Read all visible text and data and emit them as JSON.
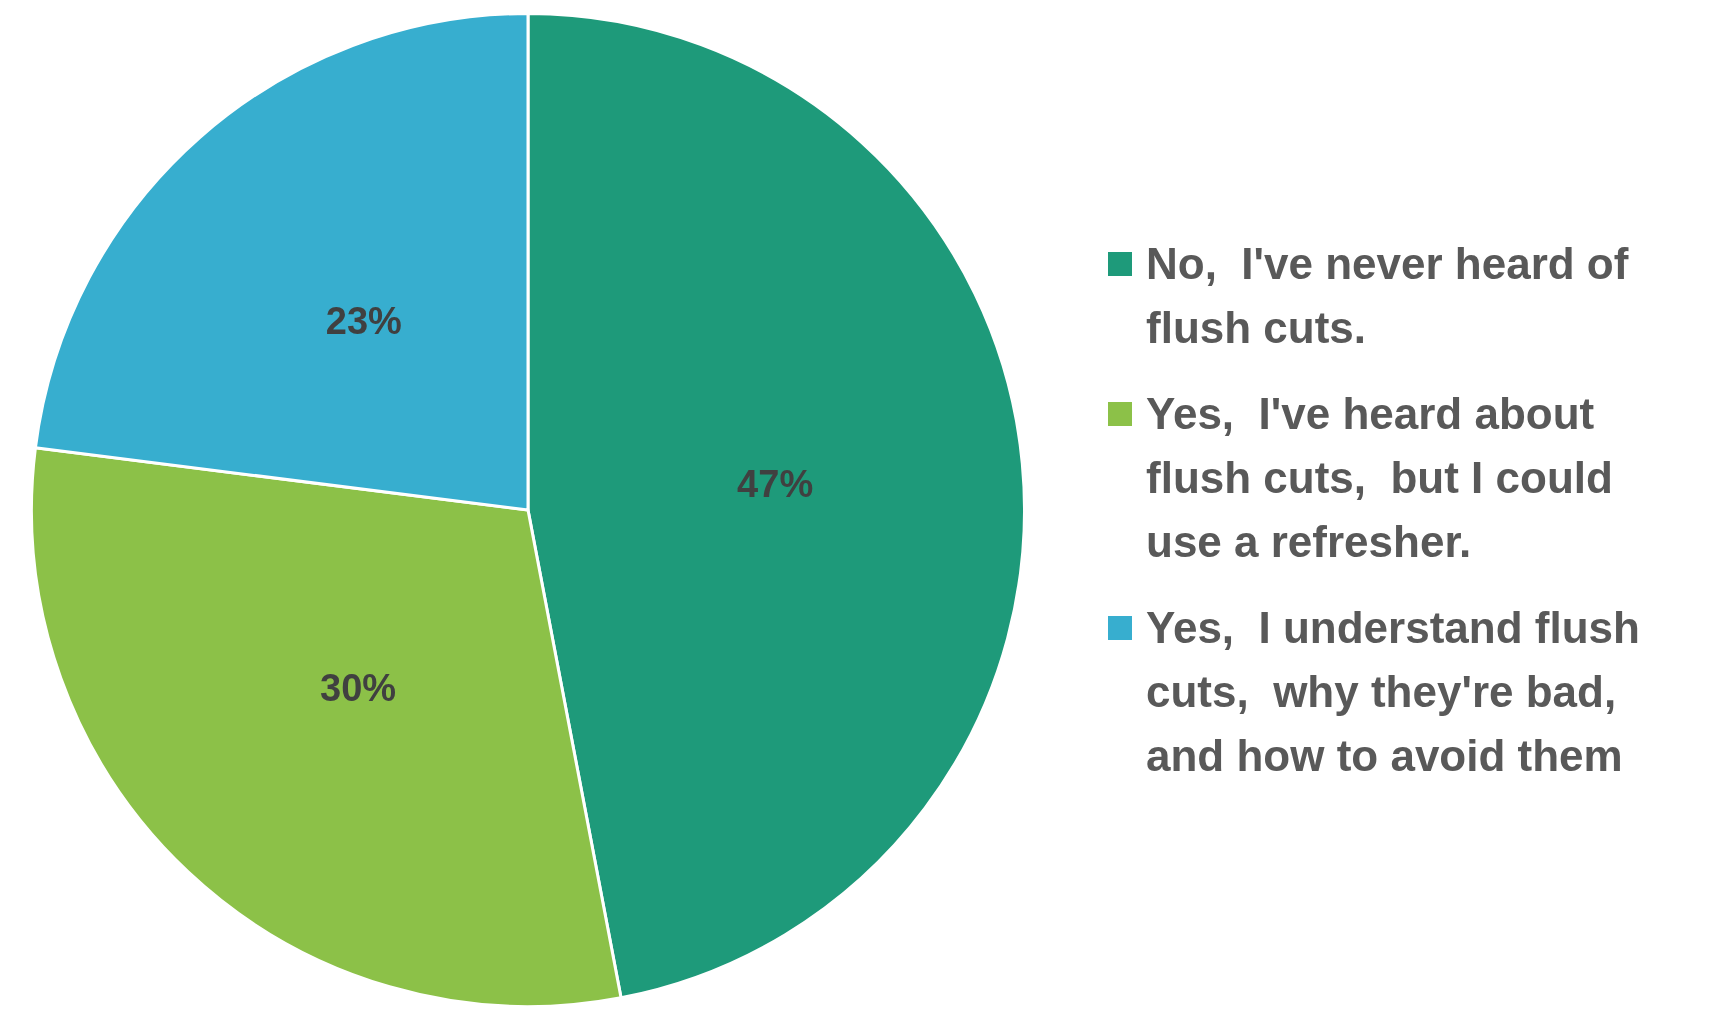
{
  "chart_data": {
    "type": "pie",
    "categories": [
      "No,  I've never heard of flush cuts.",
      "Yes,  I've heard about flush cuts,  but I could use a refresher.",
      "Yes,  I understand flush cuts,  why they're bad, and how to avoid them"
    ],
    "values": [
      47,
      30,
      23
    ],
    "colors": [
      "#1e9a7a",
      "#8cc148",
      "#37aecf"
    ],
    "value_labels": [
      "47%",
      "30%",
      "23%"
    ],
    "legend": "right"
  }
}
